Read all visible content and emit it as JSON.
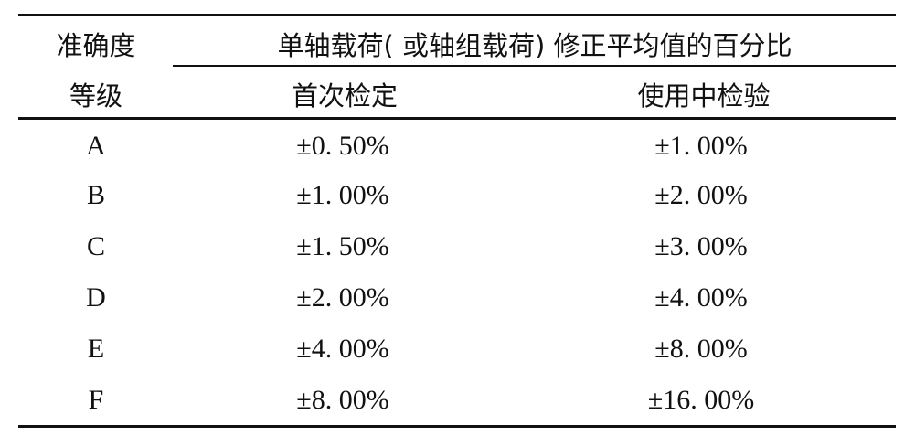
{
  "table": {
    "header": {
      "col1": [
        "准确度",
        "等级"
      ],
      "group": "单轴载荷( 或轴组载荷) 修正平均值的百分比",
      "col2": "首次检定",
      "col3": "使用中检验"
    },
    "rows": [
      {
        "grade": "A",
        "initial": "±0. 50%",
        "in_use": "±1. 00%"
      },
      {
        "grade": "B",
        "initial": "±1. 00%",
        "in_use": "±2. 00%"
      },
      {
        "grade": "C",
        "initial": "±1. 50%",
        "in_use": "±3. 00%"
      },
      {
        "grade": "D",
        "initial": "±2. 00%",
        "in_use": "±4. 00%"
      },
      {
        "grade": "E",
        "initial": "±4. 00%",
        "in_use": "±8. 00%"
      },
      {
        "grade": "F",
        "initial": "±8. 00%",
        "in_use": "±16. 00%"
      }
    ]
  }
}
